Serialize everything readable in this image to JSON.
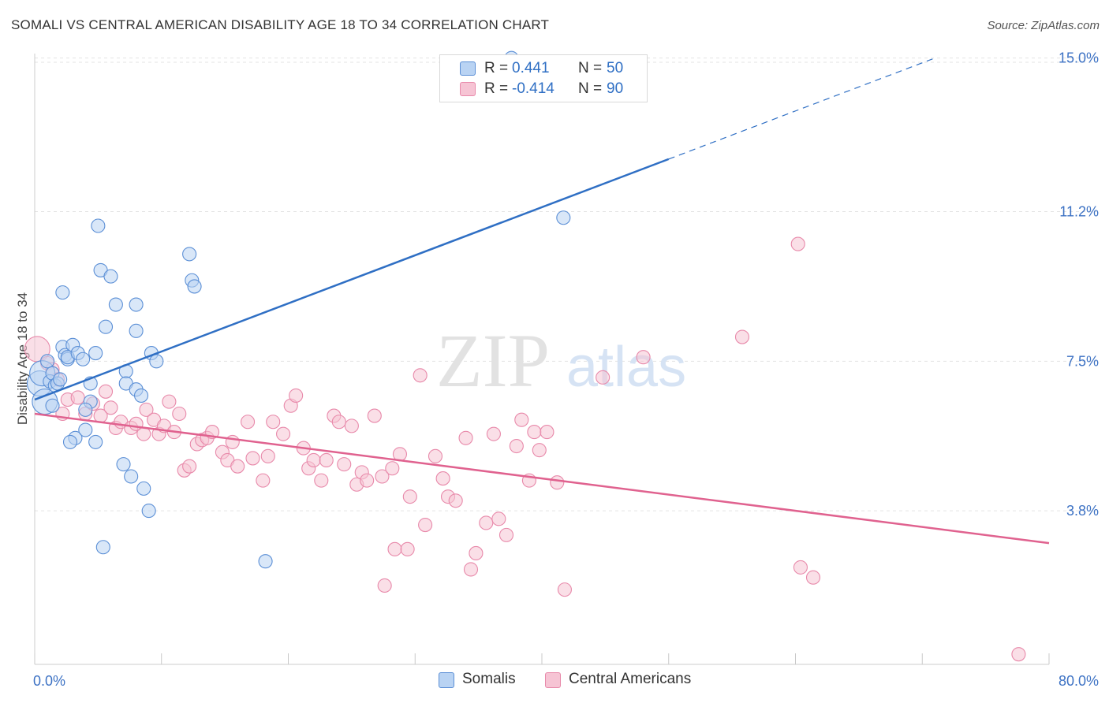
{
  "title": "SOMALI VS CENTRAL AMERICAN DISABILITY AGE 18 TO 34 CORRELATION CHART",
  "source": "Source: ZipAtlas.com",
  "watermark": {
    "zip": "ZIP",
    "atlas": "atlas"
  },
  "colors": {
    "somali_fill": "#b9d3f3",
    "somali_stroke": "#5b8fd6",
    "somali_line": "#2f6fc4",
    "central_fill": "#f6c4d4",
    "central_stroke": "#e889aa",
    "central_line": "#e0628f",
    "grid": "#e3e3e3",
    "axis_text": "#3d72c4"
  },
  "legend": {
    "rows": [
      {
        "r_label": "R =",
        "r_value": " 0.441",
        "n_label": "N =",
        "n_value": "50"
      },
      {
        "r_label": "R =",
        "r_value": "-0.414",
        "n_label": "N =",
        "n_value": "90"
      }
    ]
  },
  "bottom_legend": [
    "Somalis",
    "Central Americans"
  ],
  "chart_data": {
    "type": "scatter",
    "title": "SOMALI VS CENTRAL AMERICAN DISABILITY AGE 18 TO 34 CORRELATION CHART",
    "xlabel": "",
    "ylabel": "Disability Age 18 to 34",
    "xlim": [
      0,
      80
    ],
    "ylim": [
      0,
      15.5
    ],
    "x_tick_labels": [
      "0.0%",
      "80.0%"
    ],
    "y_ticks": [
      3.8,
      7.5,
      11.2,
      15.0
    ],
    "y_tick_labels": [
      "3.8%",
      "7.5%",
      "11.2%",
      "15.0%"
    ],
    "grid": true,
    "legend_position": "top-center",
    "series": [
      {
        "name": "Somalis",
        "r": 0.441,
        "n": 50,
        "trend": {
          "x0": 0,
          "y0": 6.55,
          "x1": 50,
          "y1": 12.5,
          "dash_x1": 71,
          "dash_y1": 15.0
        },
        "points": [
          [
            0.4,
            6.95
          ],
          [
            0.6,
            7.2
          ],
          [
            0.8,
            6.5
          ],
          [
            1.0,
            7.5
          ],
          [
            1.2,
            7.0
          ],
          [
            1.4,
            7.2
          ],
          [
            1.6,
            6.9
          ],
          [
            1.8,
            6.95
          ],
          [
            2.0,
            7.05
          ],
          [
            2.2,
            7.85
          ],
          [
            2.4,
            7.65
          ],
          [
            2.6,
            7.55
          ],
          [
            2.2,
            9.2
          ],
          [
            2.6,
            7.6
          ],
          [
            3.0,
            7.9
          ],
          [
            3.4,
            7.7
          ],
          [
            3.8,
            7.55
          ],
          [
            4.4,
            6.95
          ],
          [
            4.4,
            6.5
          ],
          [
            4.8,
            7.7
          ],
          [
            5.0,
            10.85
          ],
          [
            5.2,
            9.75
          ],
          [
            6.0,
            9.6
          ],
          [
            5.6,
            8.35
          ],
          [
            6.4,
            8.9
          ],
          [
            7.2,
            7.25
          ],
          [
            8.0,
            8.9
          ],
          [
            8.0,
            8.25
          ],
          [
            9.2,
            7.7
          ],
          [
            9.6,
            7.5
          ],
          [
            7.2,
            6.95
          ],
          [
            8.0,
            6.8
          ],
          [
            8.4,
            6.65
          ],
          [
            12.2,
            10.15
          ],
          [
            12.4,
            9.5
          ],
          [
            12.6,
            9.35
          ],
          [
            3.2,
            5.6
          ],
          [
            2.8,
            5.5
          ],
          [
            4.0,
            5.8
          ],
          [
            4.8,
            5.5
          ],
          [
            4.0,
            6.3
          ],
          [
            7.0,
            4.95
          ],
          [
            7.6,
            4.65
          ],
          [
            8.6,
            4.35
          ],
          [
            9.0,
            3.8
          ],
          [
            5.4,
            2.9
          ],
          [
            18.2,
            2.55
          ],
          [
            41.7,
            11.05
          ],
          [
            37.6,
            15.0
          ],
          [
            1.4,
            6.4
          ]
        ]
      },
      {
        "name": "Central Americans",
        "r": -0.414,
        "n": 90,
        "trend": {
          "x0": 0,
          "y0": 6.2,
          "x1": 80,
          "y1": 3.0
        },
        "points": [
          [
            0.2,
            7.8
          ],
          [
            1.0,
            7.45
          ],
          [
            1.4,
            7.3
          ],
          [
            1.8,
            7.05
          ],
          [
            2.2,
            6.2
          ],
          [
            2.6,
            6.55
          ],
          [
            3.4,
            6.6
          ],
          [
            4.0,
            6.2
          ],
          [
            4.6,
            6.45
          ],
          [
            5.2,
            6.15
          ],
          [
            5.6,
            6.75
          ],
          [
            6.0,
            6.35
          ],
          [
            6.4,
            5.85
          ],
          [
            6.8,
            6.0
          ],
          [
            7.6,
            5.85
          ],
          [
            8.0,
            5.95
          ],
          [
            8.6,
            5.7
          ],
          [
            8.8,
            6.3
          ],
          [
            9.4,
            6.05
          ],
          [
            9.8,
            5.7
          ],
          [
            10.2,
            5.9
          ],
          [
            10.6,
            6.5
          ],
          [
            11.0,
            5.75
          ],
          [
            11.4,
            6.2
          ],
          [
            11.8,
            4.8
          ],
          [
            12.2,
            4.9
          ],
          [
            12.8,
            5.45
          ],
          [
            13.2,
            5.55
          ],
          [
            13.6,
            5.6
          ],
          [
            14.0,
            5.75
          ],
          [
            14.8,
            5.25
          ],
          [
            15.2,
            5.05
          ],
          [
            15.6,
            5.5
          ],
          [
            16.0,
            4.9
          ],
          [
            16.8,
            6.0
          ],
          [
            17.2,
            5.1
          ],
          [
            18.0,
            4.55
          ],
          [
            18.4,
            5.15
          ],
          [
            18.8,
            6.0
          ],
          [
            19.6,
            5.7
          ],
          [
            20.2,
            6.4
          ],
          [
            20.6,
            6.65
          ],
          [
            21.2,
            5.35
          ],
          [
            21.6,
            4.85
          ],
          [
            22.0,
            5.05
          ],
          [
            22.6,
            4.55
          ],
          [
            23.0,
            5.05
          ],
          [
            23.6,
            6.15
          ],
          [
            24.0,
            6.0
          ],
          [
            24.4,
            4.95
          ],
          [
            25.0,
            5.9
          ],
          [
            25.4,
            4.45
          ],
          [
            25.8,
            4.75
          ],
          [
            26.2,
            4.55
          ],
          [
            26.8,
            6.15
          ],
          [
            27.4,
            4.65
          ],
          [
            28.2,
            4.85
          ],
          [
            28.8,
            5.2
          ],
          [
            29.6,
            4.15
          ],
          [
            30.4,
            7.15
          ],
          [
            30.8,
            3.45
          ],
          [
            31.6,
            5.15
          ],
          [
            32.2,
            4.6
          ],
          [
            32.6,
            4.15
          ],
          [
            33.2,
            4.05
          ],
          [
            34.0,
            5.6
          ],
          [
            34.4,
            2.35
          ],
          [
            34.8,
            2.75
          ],
          [
            35.6,
            3.5
          ],
          [
            36.2,
            5.7
          ],
          [
            36.6,
            3.6
          ],
          [
            37.2,
            3.2
          ],
          [
            38.0,
            5.4
          ],
          [
            38.4,
            6.05
          ],
          [
            39.0,
            4.55
          ],
          [
            39.4,
            5.75
          ],
          [
            39.8,
            5.3
          ],
          [
            40.4,
            5.75
          ],
          [
            41.2,
            4.5
          ],
          [
            41.8,
            1.85
          ],
          [
            44.8,
            7.1
          ],
          [
            48.0,
            7.6
          ],
          [
            55.8,
            8.1
          ],
          [
            60.2,
            10.4
          ],
          [
            60.4,
            2.4
          ],
          [
            61.4,
            2.15
          ],
          [
            77.6,
            0.25
          ],
          [
            27.6,
            1.95
          ],
          [
            28.4,
            2.85
          ],
          [
            29.4,
            2.85
          ]
        ]
      }
    ]
  }
}
